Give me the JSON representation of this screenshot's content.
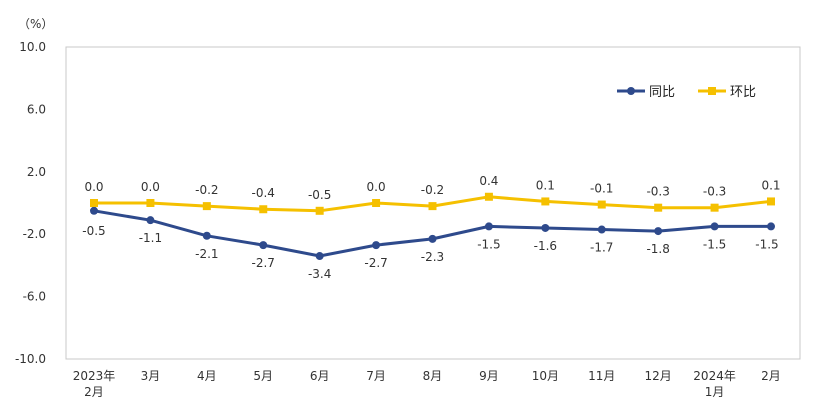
{
  "chart_data": {
    "type": "line",
    "unit_label": "（%）",
    "categories": [
      [
        "2023年",
        "2月"
      ],
      [
        "3月"
      ],
      [
        "4月"
      ],
      [
        "5月"
      ],
      [
        "6月"
      ],
      [
        "7月"
      ],
      [
        "8月"
      ],
      [
        "9月"
      ],
      [
        "10月"
      ],
      [
        "11月"
      ],
      [
        "12月"
      ],
      [
        "2024年",
        "1月"
      ],
      [
        "2月"
      ]
    ],
    "ylim": [
      -10.0,
      10.0
    ],
    "yticks": [
      "10.0",
      "6.0",
      "2.0",
      "-2.0",
      "-6.0",
      "-10.0"
    ],
    "grid": false,
    "legend": "top-right",
    "series": [
      {
        "name": "同比",
        "color": "#2e4a8c",
        "marker": "circle",
        "values": [
          -0.5,
          -1.1,
          -2.1,
          -2.7,
          -3.4,
          -2.7,
          -2.3,
          -1.5,
          -1.6,
          -1.7,
          -1.8,
          -1.5,
          -1.5
        ],
        "labels": [
          "-0.5",
          "-1.1",
          "-2.1",
          "-2.7",
          "-3.4",
          "-2.7",
          "-2.3",
          "-1.5",
          "-1.6",
          "-1.7",
          "-1.8",
          "-1.5",
          "-1.5"
        ]
      },
      {
        "name": "环比",
        "color": "#f5c000",
        "marker": "square",
        "values": [
          0.0,
          0.0,
          -0.2,
          -0.4,
          -0.5,
          0.0,
          -0.2,
          0.4,
          0.1,
          -0.1,
          -0.3,
          -0.3,
          0.1
        ],
        "labels": [
          "0.0",
          "0.0",
          "-0.2",
          "-0.4",
          "-0.5",
          "0.0",
          "-0.2",
          "0.4",
          "0.1",
          "-0.1",
          "-0.3",
          "-0.3",
          "0.1"
        ]
      }
    ]
  }
}
